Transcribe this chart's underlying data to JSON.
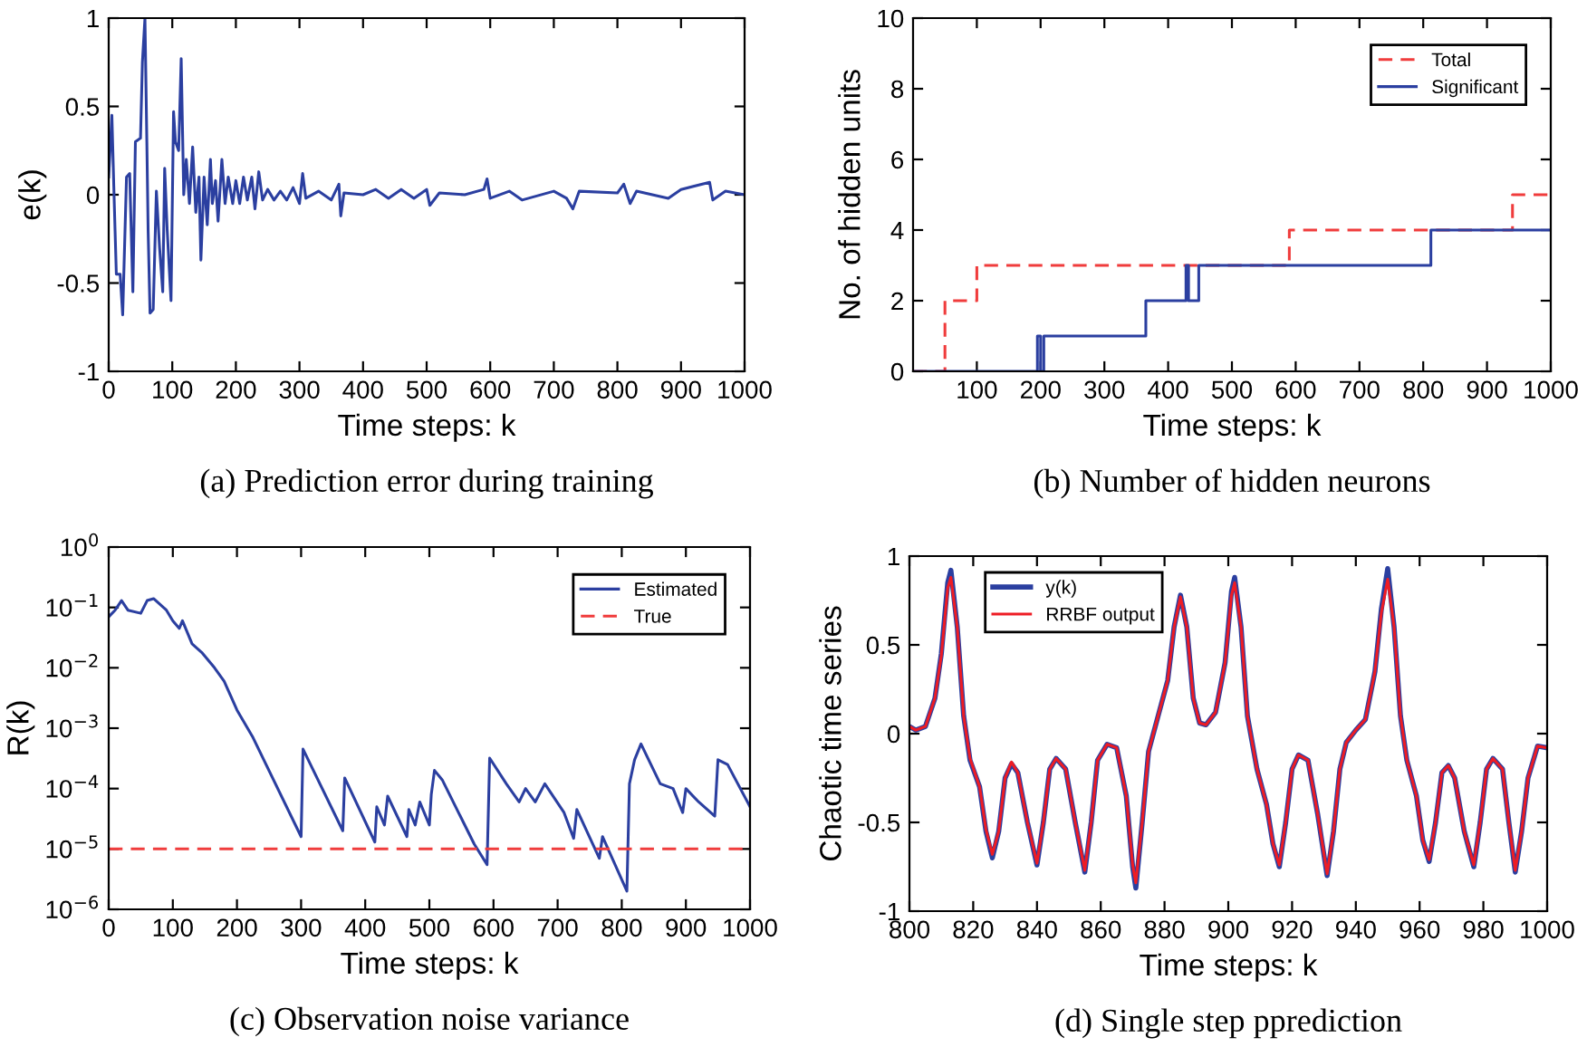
{
  "chart_data": [
    {
      "type": "line",
      "title": "(a) Prediction error during training",
      "xlabel": "Time steps: k",
      "ylabel": "e(k)",
      "xlim": [
        0,
        1000
      ],
      "ylim": [
        -1,
        1
      ],
      "xticks": [
        0,
        100,
        200,
        300,
        400,
        500,
        600,
        700,
        800,
        900,
        1000
      ],
      "yticks": [
        -1,
        -0.5,
        0,
        0.5,
        1
      ],
      "grid": false,
      "legend": false,
      "x": [
        0,
        5,
        8,
        12,
        18,
        22,
        28,
        33,
        38,
        42,
        50,
        53,
        57,
        60,
        62,
        65,
        70,
        75,
        80,
        85,
        88,
        92,
        98,
        102,
        105,
        110,
        114,
        118,
        122,
        127,
        132,
        137,
        142,
        145,
        150,
        155,
        160,
        163,
        168,
        172,
        178,
        183,
        188,
        195,
        200,
        206,
        212,
        218,
        225,
        230,
        236,
        242,
        250,
        260,
        270,
        280,
        290,
        300,
        305,
        310,
        330,
        350,
        362,
        365,
        370,
        400,
        420,
        440,
        460,
        480,
        500,
        505,
        520,
        560,
        590,
        595,
        600,
        630,
        650,
        700,
        720,
        730,
        740,
        800,
        810,
        820,
        830,
        880,
        900,
        945,
        950,
        970,
        1000
      ],
      "series": [
        {
          "color": "#2b3fa0",
          "values": [
            0.1,
            0.45,
            0.05,
            -0.45,
            -0.45,
            -0.68,
            0.1,
            0.12,
            -0.55,
            0.3,
            0.32,
            0.75,
            1.0,
            0.3,
            -0.2,
            -0.67,
            -0.65,
            0.02,
            -0.3,
            -0.55,
            0.15,
            -0.2,
            -0.6,
            0.47,
            0.3,
            0.25,
            0.77,
            0.0,
            0.2,
            -0.05,
            0.27,
            -0.1,
            0.1,
            -0.37,
            0.1,
            -0.17,
            0.2,
            -0.05,
            0.08,
            -0.15,
            0.2,
            -0.05,
            0.1,
            -0.05,
            0.08,
            -0.05,
            0.1,
            -0.03,
            0.1,
            -0.08,
            0.13,
            -0.03,
            0.03,
            -0.03,
            0.02,
            -0.03,
            0.04,
            -0.05,
            0.12,
            -0.02,
            0.02,
            -0.03,
            0.06,
            -0.12,
            0.01,
            0.0,
            0.03,
            -0.02,
            0.03,
            -0.02,
            0.03,
            -0.06,
            0.01,
            0.0,
            0.03,
            0.09,
            -0.02,
            0.02,
            -0.03,
            0.02,
            -0.02,
            -0.08,
            0.02,
            0.01,
            0.06,
            -0.05,
            0.02,
            -0.02,
            0.03,
            0.07,
            -0.03,
            0.02,
            0.0
          ]
        }
      ]
    },
    {
      "type": "step",
      "title": "(b) Number of hidden neurons",
      "xlabel": "Time steps: k",
      "ylabel": "No. of hidden units",
      "xlim": [
        0,
        1000
      ],
      "ylim": [
        0,
        10
      ],
      "xticks": [
        100,
        200,
        300,
        400,
        500,
        600,
        700,
        800,
        900,
        1000
      ],
      "yticks": [
        0,
        2,
        4,
        6,
        8,
        10
      ],
      "grid": false,
      "legend": "top right",
      "series": [
        {
          "name": "Total",
          "color": "#f03c3c",
          "line_style": "dashed",
          "x": [
            0,
            50,
            100,
            590,
            940,
            1000
          ],
          "values": [
            0,
            2,
            3,
            4,
            5,
            5
          ]
        },
        {
          "name": "Significant",
          "color": "#2b3fa0",
          "line_style": "solid",
          "x": [
            0,
            195,
            200,
            205,
            365,
            428,
            432,
            448,
            812,
            1000
          ],
          "values": [
            0,
            1,
            0,
            1,
            2,
            3,
            2,
            3,
            4,
            4
          ]
        }
      ]
    },
    {
      "type": "line",
      "title": "(c) Observation noise variance",
      "xlabel": "Time steps: k",
      "ylabel": "R(k)",
      "log": "y",
      "xlim": [
        0,
        1000
      ],
      "ylim": [
        1e-06,
        1
      ],
      "xticks": [
        0,
        100,
        200,
        300,
        400,
        500,
        600,
        700,
        800,
        900,
        1000
      ],
      "yticks": [
        {
          "value": 1e-06,
          "label": "10$^{−6}$"
        },
        {
          "value": 1e-05,
          "label": "10$^{−5}$"
        },
        {
          "value": 0.0001,
          "label": "10$^{−4}$"
        },
        {
          "value": 0.001,
          "label": "10$^{−3}$"
        },
        {
          "value": 0.01,
          "label": "10$^{−2}$"
        },
        {
          "value": 0.1,
          "label": "10$^{−1}$"
        },
        {
          "value": 1,
          "label": "10$^{0}$"
        }
      ],
      "grid": false,
      "legend": "top right",
      "series": [
        {
          "name": "Estimated",
          "color": "#2b3fa0",
          "line_style": "solid",
          "x": [
            0,
            10,
            20,
            30,
            50,
            60,
            70,
            90,
            100,
            110,
            115,
            130,
            145,
            165,
            180,
            200,
            225,
            300,
            303,
            365,
            368,
            415,
            418,
            430,
            435,
            465,
            468,
            478,
            485,
            500,
            503,
            508,
            520,
            570,
            590,
            594,
            620,
            640,
            650,
            665,
            680,
            710,
            725,
            730,
            765,
            770,
            808,
            812,
            820,
            830,
            860,
            880,
            895,
            900,
            920,
            945,
            950,
            965,
            1000
          ],
          "values": [
            0.07,
            0.09,
            0.13,
            0.09,
            0.08,
            0.13,
            0.14,
            0.09,
            0.06,
            0.045,
            0.06,
            0.025,
            0.018,
            0.01,
            0.006,
            0.002,
            0.0007,
            1.6e-05,
            0.00045,
            2e-05,
            0.00015,
            1.3e-05,
            5e-05,
            2.5e-05,
            7.5e-05,
            1.6e-05,
            4.5e-05,
            2.5e-05,
            6e-05,
            2.5e-05,
            8e-05,
            0.0002,
            0.00014,
            1.2e-05,
            5.5e-06,
            0.00032,
            0.00012,
            6e-05,
            0.0001,
            6e-05,
            0.00012,
            4e-05,
            1.5e-05,
            4.5e-05,
            7e-06,
            1.6e-05,
            2e-06,
            0.00012,
            0.0003,
            0.00055,
            0.00012,
            0.0001,
            4e-05,
            0.0001,
            6e-05,
            3.5e-05,
            0.0003,
            0.00025,
            5e-05
          ]
        },
        {
          "name": "True",
          "color": "#f03c3c",
          "line_style": "dashed",
          "x": [
            0,
            1000
          ],
          "values": [
            1e-05,
            1e-05
          ]
        }
      ]
    },
    {
      "type": "line",
      "title": "(d) Single step pprediction",
      "xlabel": "Time steps: k",
      "ylabel": "Chaotic time series",
      "xlim": [
        800,
        1000
      ],
      "ylim": [
        -1,
        1
      ],
      "xticks": [
        800,
        820,
        840,
        860,
        880,
        900,
        920,
        940,
        960,
        980,
        1000
      ],
      "yticks": [
        -1,
        -0.5,
        0,
        0.5,
        1
      ],
      "grid": false,
      "legend": "top left",
      "x": [
        800,
        802,
        805,
        808,
        810,
        812,
        813,
        815,
        817,
        819,
        822,
        824,
        826,
        828,
        830,
        832,
        834,
        837,
        840,
        842,
        844,
        846,
        849,
        852,
        855,
        857,
        859,
        862,
        865,
        868,
        870,
        871,
        873,
        875,
        878,
        881,
        883,
        885,
        887,
        889,
        891,
        893,
        896,
        899,
        901,
        902,
        904,
        906,
        909,
        912,
        914,
        916,
        918,
        920,
        922,
        925,
        928,
        931,
        933,
        935,
        937,
        940,
        943,
        946,
        948,
        950,
        952,
        954,
        956,
        959,
        961,
        963,
        965,
        967,
        969,
        971,
        974,
        977,
        979,
        981,
        983,
        986,
        988,
        990,
        992,
        994,
        997,
        1000
      ],
      "series": [
        {
          "name": "y(k)",
          "color": "#2b3fa0",
          "line_style": "solid",
          "values": [
            0.04,
            0.02,
            0.04,
            0.2,
            0.45,
            0.85,
            0.92,
            0.6,
            0.1,
            -0.15,
            -0.3,
            -0.55,
            -0.7,
            -0.55,
            -0.25,
            -0.17,
            -0.22,
            -0.5,
            -0.74,
            -0.5,
            -0.2,
            -0.14,
            -0.2,
            -0.5,
            -0.78,
            -0.5,
            -0.15,
            -0.06,
            -0.08,
            -0.35,
            -0.75,
            -0.87,
            -0.5,
            -0.1,
            0.1,
            0.3,
            0.6,
            0.78,
            0.6,
            0.2,
            0.06,
            0.05,
            0.12,
            0.4,
            0.8,
            0.88,
            0.6,
            0.1,
            -0.2,
            -0.4,
            -0.62,
            -0.75,
            -0.5,
            -0.2,
            -0.12,
            -0.15,
            -0.45,
            -0.8,
            -0.55,
            -0.2,
            -0.05,
            0.02,
            0.08,
            0.35,
            0.7,
            0.93,
            0.6,
            0.1,
            -0.15,
            -0.35,
            -0.6,
            -0.72,
            -0.5,
            -0.22,
            -0.18,
            -0.25,
            -0.55,
            -0.75,
            -0.5,
            -0.2,
            -0.14,
            -0.2,
            -0.5,
            -0.78,
            -0.55,
            -0.25,
            -0.07,
            -0.08
          ]
        },
        {
          "name": "RRBF output",
          "color": "#ee1c24",
          "line_style": "solid",
          "values": [
            0.04,
            0.02,
            0.04,
            0.2,
            0.44,
            0.82,
            0.88,
            0.6,
            0.1,
            -0.14,
            -0.3,
            -0.54,
            -0.68,
            -0.55,
            -0.25,
            -0.16,
            -0.22,
            -0.5,
            -0.73,
            -0.5,
            -0.2,
            -0.14,
            -0.2,
            -0.5,
            -0.77,
            -0.5,
            -0.15,
            -0.06,
            -0.08,
            -0.35,
            -0.74,
            -0.84,
            -0.5,
            -0.1,
            0.1,
            0.3,
            0.6,
            0.77,
            0.6,
            0.2,
            0.06,
            0.05,
            0.12,
            0.4,
            0.78,
            0.85,
            0.6,
            0.1,
            -0.2,
            -0.4,
            -0.62,
            -0.74,
            -0.5,
            -0.2,
            -0.12,
            -0.15,
            -0.45,
            -0.79,
            -0.55,
            -0.2,
            -0.05,
            0.02,
            0.08,
            0.35,
            0.68,
            0.87,
            0.6,
            0.1,
            -0.15,
            -0.35,
            -0.6,
            -0.71,
            -0.5,
            -0.22,
            -0.18,
            -0.25,
            -0.55,
            -0.74,
            -0.5,
            -0.2,
            -0.14,
            -0.2,
            -0.5,
            -0.77,
            -0.55,
            -0.25,
            -0.07,
            -0.08
          ]
        }
      ]
    }
  ]
}
